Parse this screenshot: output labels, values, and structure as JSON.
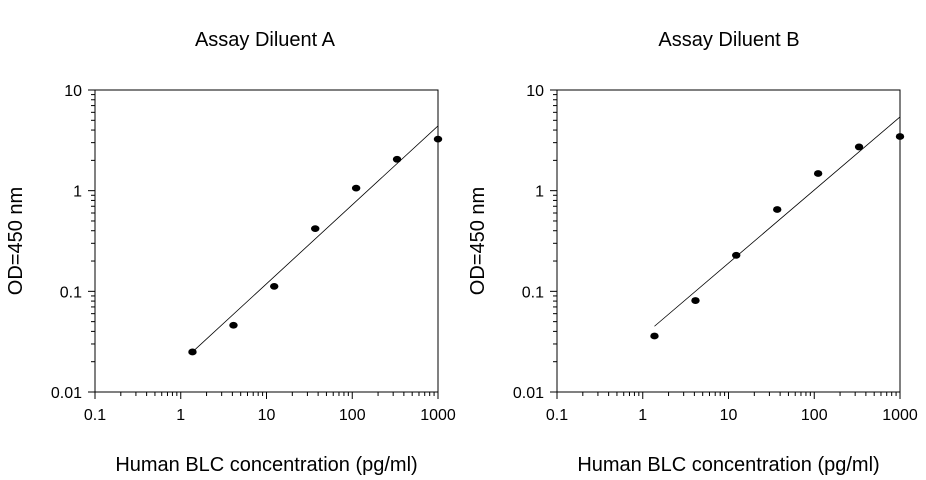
{
  "chart_data": [
    {
      "type": "scatter",
      "title": "Assay Diluent A",
      "xlabel": "Human BLC concentration (pg/ml)",
      "ylabel": "OD=450 nm",
      "xscale": "log",
      "yscale": "log",
      "xlim": [
        0.1,
        1000
      ],
      "ylim": [
        0.01,
        10
      ],
      "xticks": [
        "0.1",
        "1",
        "10",
        "100",
        "1000"
      ],
      "yticks": [
        "0.01",
        "0.1",
        "1",
        "10"
      ],
      "grid": false,
      "series": [
        {
          "x": [
            1.37,
            4.12,
            12.3,
            37.0,
            111,
            333,
            1000
          ],
          "y": [
            0.025,
            0.046,
            0.112,
            0.42,
            1.06,
            2.05,
            3.25
          ]
        }
      ],
      "fit_line": {
        "x": [
          1.37,
          1000
        ],
        "y": [
          0.025,
          4.4
        ]
      }
    },
    {
      "type": "scatter",
      "title": "Assay Diluent B",
      "xlabel": "Human BLC concentration (pg/ml)",
      "ylabel": "OD=450 nm",
      "xscale": "log",
      "yscale": "log",
      "xlim": [
        0.1,
        1000
      ],
      "ylim": [
        0.01,
        10
      ],
      "xticks": [
        "0.1",
        "1",
        "10",
        "100",
        "1000"
      ],
      "yticks": [
        "0.01",
        "0.1",
        "1",
        "10"
      ],
      "grid": false,
      "series": [
        {
          "x": [
            1.37,
            4.12,
            12.3,
            37.0,
            111,
            333,
            1000
          ],
          "y": [
            0.036,
            0.081,
            0.228,
            0.65,
            1.48,
            2.72,
            3.45
          ]
        }
      ],
      "fit_line": {
        "x": [
          1.37,
          1000
        ],
        "y": [
          0.045,
          5.4
        ]
      }
    }
  ]
}
